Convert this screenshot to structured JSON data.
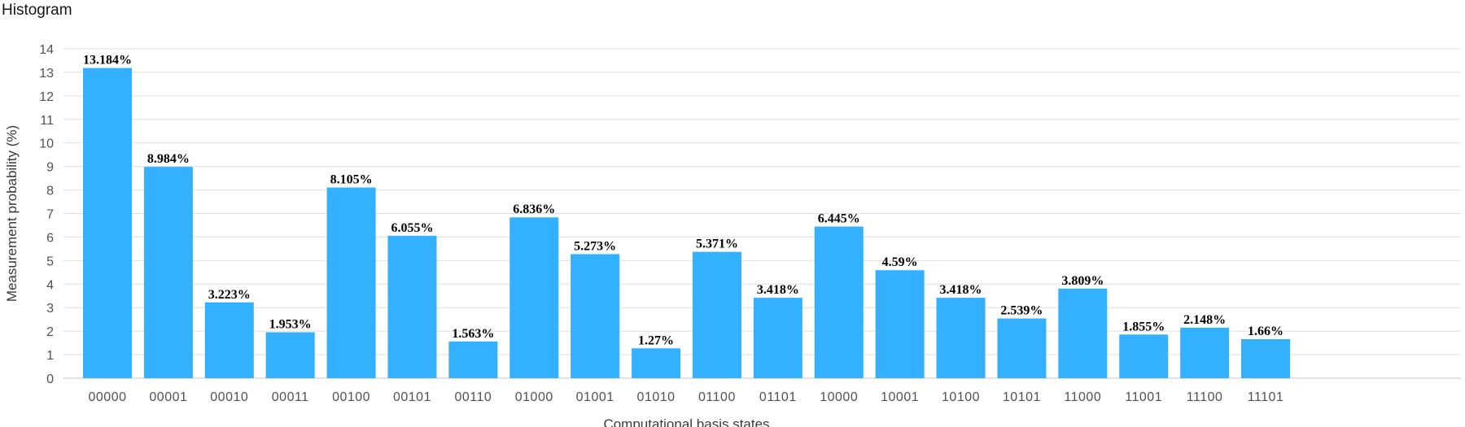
{
  "chart_data": {
    "type": "bar",
    "title": "Histogram",
    "xlabel": "Computational basis states",
    "ylabel": "Measurement probability (%)",
    "ylim": [
      0,
      14
    ],
    "yticks": [
      0,
      1,
      2,
      3,
      4,
      5,
      6,
      7,
      8,
      9,
      10,
      11,
      12,
      13,
      14
    ],
    "grid": true,
    "categories": [
      "00000",
      "00001",
      "00010",
      "00011",
      "00100",
      "00101",
      "00110",
      "01000",
      "01001",
      "01010",
      "01100",
      "01101",
      "10000",
      "10001",
      "10100",
      "10101",
      "11000",
      "11001",
      "11100",
      "11101"
    ],
    "values": [
      13.184,
      8.984,
      3.223,
      1.953,
      8.105,
      6.055,
      1.563,
      6.836,
      5.273,
      1.27,
      5.371,
      3.418,
      6.445,
      4.59,
      3.418,
      2.539,
      3.809,
      1.855,
      2.148,
      1.66
    ],
    "data_labels": [
      "13.184%",
      "8.984%",
      "3.223%",
      "1.953%",
      "8.105%",
      "6.055%",
      "1.563%",
      "6.836%",
      "5.273%",
      "1.27%",
      "5.371%",
      "3.418%",
      "6.445%",
      "4.59%",
      "3.418%",
      "2.539%",
      "3.809%",
      "1.855%",
      "2.148%",
      "1.66%"
    ],
    "bar_color": "#33b1ff"
  }
}
